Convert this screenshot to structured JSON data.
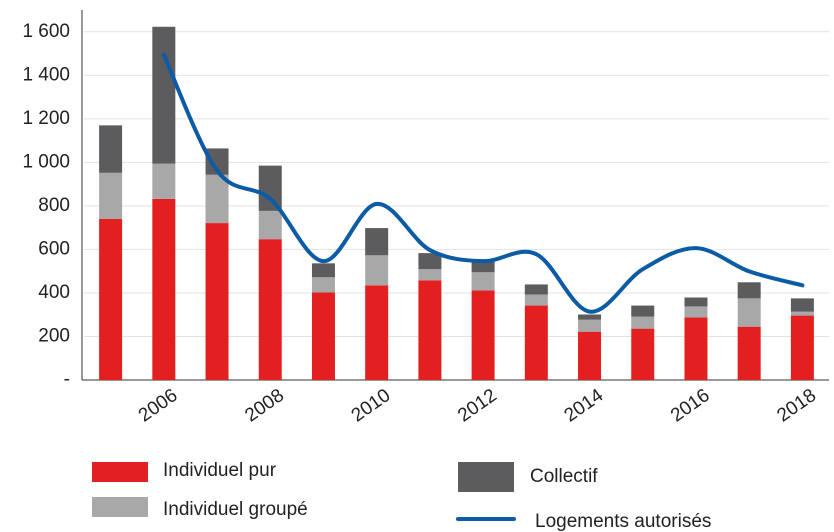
{
  "chart_data": {
    "type": "bar",
    "stacked": true,
    "categories": [
      null,
      "2006",
      null,
      "2008",
      null,
      "2010",
      null,
      "2012",
      null,
      "2014",
      null,
      "2016",
      null,
      "2018"
    ],
    "series": [
      {
        "name": "Individuel pur",
        "color": "#e3201f",
        "values": [
          740,
          832,
          721,
          647,
          402,
          435,
          458,
          412,
          342,
          222,
          236,
          287,
          245,
          296
        ]
      },
      {
        "name": "Individuel groupé",
        "color": "#a8a8a8",
        "values": [
          212,
          162,
          222,
          130,
          70,
          138,
          51,
          83,
          51,
          55,
          55,
          51,
          130,
          18
        ]
      },
      {
        "name": "Collectif",
        "color": "#5c5c5e",
        "values": [
          218,
          629,
          121,
          208,
          64,
          125,
          74,
          51,
          46,
          24,
          51,
          41,
          74,
          61
        ]
      },
      {
        "name": "Logements autorisés",
        "color": "#0c5ba5",
        "type": "line",
        "values": [
          null,
          1494,
          962,
          832,
          546,
          809,
          597,
          546,
          578,
          314,
          509,
          606,
          499,
          435
        ]
      }
    ],
    "ylim": [
      0,
      1700
    ],
    "yticks": [
      {
        "value": 0,
        "label": "-"
      },
      200,
      400,
      600,
      800,
      {
        "value": 1000,
        "label": "1 000"
      },
      {
        "value": 1200,
        "label": "1 200"
      },
      {
        "value": 1400,
        "label": "1 400"
      },
      {
        "value": 1600,
        "label": "1 600"
      }
    ],
    "grid": true,
    "legend": "bottom"
  }
}
